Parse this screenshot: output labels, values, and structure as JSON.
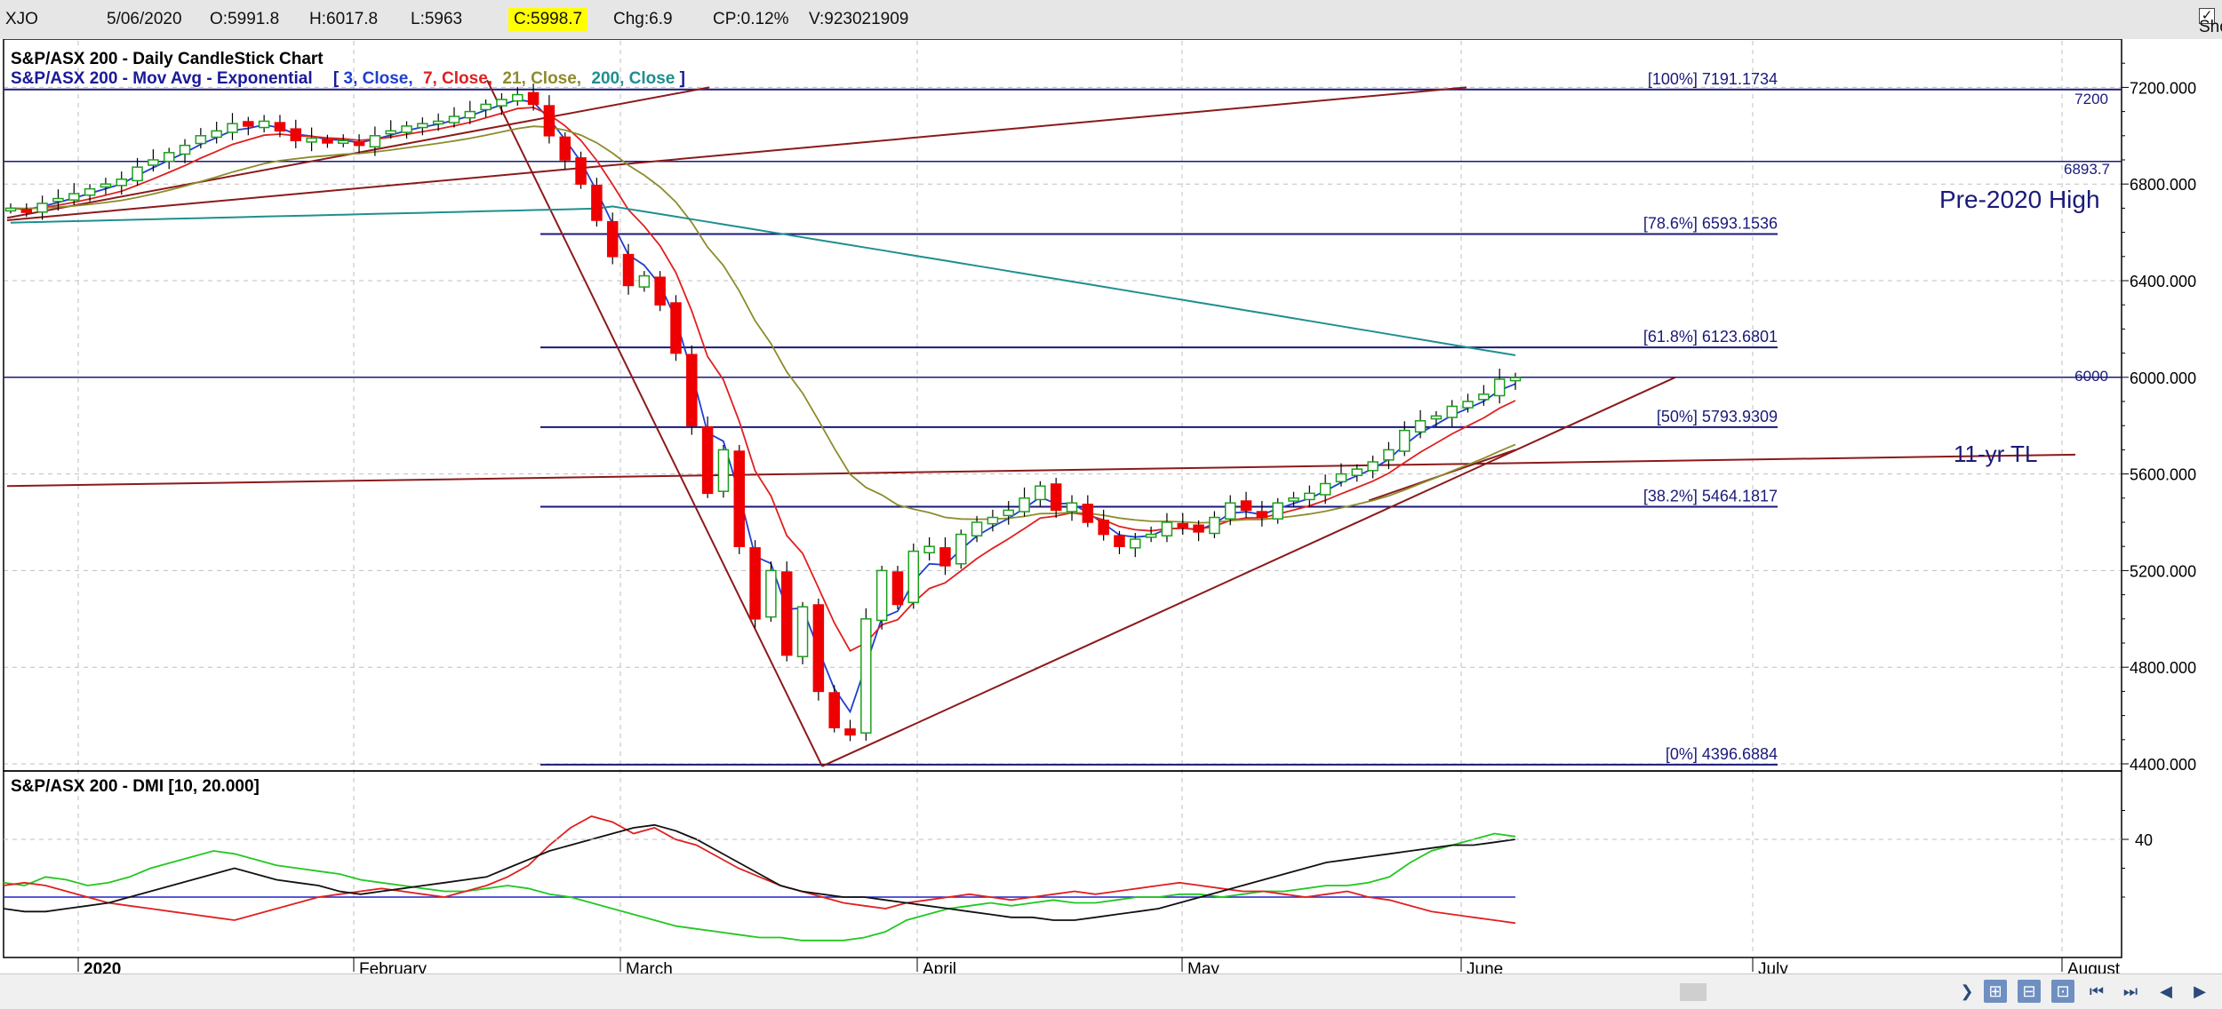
{
  "quote": {
    "symbol": "XJO",
    "date": "5/06/2020",
    "open": "O:5991.8",
    "high": "H:6017.8",
    "low": "L:5963",
    "close": "C:5998.7",
    "change": "Chg:6.9",
    "change_pct": "CP:0.12%",
    "volume": "V:923021909"
  },
  "show_last": {
    "label": "Show Last",
    "checked": "✓"
  },
  "chart_titles": {
    "main": "S&P/ASX 200 - Daily CandleStick Chart",
    "ma_prefix": "S&P/ASX 200 - Mov Avg - Exponential",
    "ma_bracket_open": "[",
    "ma_3": "3, Close,",
    "ma_7": "7, Close,",
    "ma_21": "21, Close,",
    "ma_200": "200, Close",
    "ma_bracket_close": "]",
    "dmi": "S&P/ASX 200 - DMI [10, 20.000]"
  },
  "colors": {
    "ma3": "#1f3fd0",
    "ma7": "#e02020",
    "ma21": "#8c8c2c",
    "ma200": "#1f8f8f",
    "fib": "#1a1a7a",
    "trend": "#8b1a1a",
    "up_candle": "#1aa01a",
    "down_candle": "#ee0000",
    "dmi_plus": "#21c821",
    "dmi_minus": "#e02020",
    "adx": "#111111",
    "threshold": "#2020c8"
  },
  "annotations": {
    "pre2020": "Pre-2020 High",
    "tl11": "11-yr TL",
    "lvl_7200": "7200",
    "lvl_6893": "6893.7",
    "lvl_6000": "6000"
  },
  "chart_data": {
    "type": "candlestick",
    "y_axis": {
      "range": [
        4400,
        7400
      ],
      "ticks": [
        "7200.000",
        "6800.000",
        "6400.000",
        "6000.000",
        "5600.000",
        "5200.000",
        "4800.000",
        "4400.000"
      ]
    },
    "x_axis": {
      "labels": [
        "2020",
        "February",
        "March",
        "April",
        "May",
        "June",
        "July",
        "August"
      ]
    },
    "fibonacci": [
      {
        "label": "[100%] 7191.1734",
        "value": 7191.1734
      },
      {
        "label": "[78.6%] 6593.1536",
        "value": 6593.1536
      },
      {
        "label": "[61.8%] 6123.6801",
        "value": 6123.6801
      },
      {
        "label": "[50%] 5793.9309",
        "value": 5793.9309
      },
      {
        "label": "[38.2%] 5464.1817",
        "value": 5464.1817
      },
      {
        "label": "[0%] 4396.6884",
        "value": 4396.6884
      }
    ],
    "horizontal_levels": [
      7200,
      6893.7,
      6000
    ],
    "candles_approx": {
      "note": "approximate daily OHLC, early Jan – 5 Jun 2020",
      "closes": [
        6700,
        6690,
        6720,
        6740,
        6760,
        6780,
        6800,
        6820,
        6870,
        6900,
        6930,
        6960,
        7000,
        7020,
        7050,
        7040,
        7060,
        7020,
        6980,
        6990,
        6970,
        6980,
        6960,
        7000,
        7020,
        7040,
        7050,
        7060,
        7080,
        7100,
        7130,
        7150,
        7170,
        7130,
        7000,
        6900,
        6800,
        6650,
        6500,
        6380,
        6420,
        6300,
        6100,
        5800,
        5520,
        5700,
        5300,
        5000,
        5200,
        4850,
        5050,
        4700,
        4550,
        4520,
        5000,
        5200,
        5060,
        5280,
        5300,
        5220,
        5350,
        5400,
        5420,
        5450,
        5500,
        5550,
        5450,
        5480,
        5400,
        5350,
        5300,
        5330,
        5350,
        5400,
        5380,
        5360,
        5420,
        5480,
        5450,
        5420,
        5480,
        5500,
        5520,
        5560,
        5600,
        5620,
        5650,
        5700,
        5780,
        5820,
        5840,
        5880,
        5900,
        5930,
        5992,
        5999
      ]
    },
    "dmi": {
      "y_ticks": [
        "40"
      ],
      "threshold": 20,
      "plus_di": [
        25,
        24,
        27,
        26,
        24,
        25,
        27,
        30,
        32,
        34,
        36,
        35,
        33,
        31,
        30,
        29,
        28,
        26,
        25,
        24,
        23,
        22,
        22,
        23,
        24,
        23,
        21,
        20,
        18,
        16,
        14,
        12,
        10,
        9,
        8,
        7,
        6,
        6,
        5,
        5,
        5,
        6,
        8,
        12,
        14,
        16,
        17,
        18,
        17,
        18,
        19,
        18,
        18,
        19,
        20,
        20,
        21,
        21,
        20,
        21,
        22,
        22,
        23,
        24,
        24,
        25,
        27,
        32,
        36,
        38,
        40,
        42,
        41
      ],
      "minus_di": [
        24,
        25,
        24,
        22,
        20,
        18,
        17,
        16,
        15,
        14,
        13,
        12,
        14,
        16,
        18,
        20,
        21,
        22,
        23,
        22,
        21,
        20,
        22,
        24,
        27,
        31,
        38,
        44,
        48,
        46,
        42,
        44,
        40,
        38,
        34,
        30,
        27,
        24,
        22,
        20,
        18,
        17,
        16,
        18,
        19,
        20,
        21,
        20,
        19,
        20,
        21,
        22,
        21,
        22,
        23,
        24,
        25,
        24,
        23,
        22,
        22,
        21,
        20,
        21,
        22,
        20,
        19,
        17,
        15,
        14,
        13,
        12,
        11
      ],
      "adx": [
        16,
        15,
        15,
        16,
        17,
        18,
        20,
        22,
        24,
        26,
        28,
        30,
        28,
        26,
        25,
        24,
        22,
        21,
        22,
        23,
        24,
        25,
        26,
        27,
        30,
        33,
        36,
        38,
        40,
        42,
        44,
        45,
        43,
        40,
        36,
        32,
        28,
        24,
        22,
        21,
        20,
        20,
        19,
        18,
        17,
        16,
        15,
        14,
        13,
        13,
        12,
        12,
        13,
        14,
        15,
        16,
        18,
        20,
        22,
        24,
        26,
        28,
        30,
        32,
        33,
        34,
        35,
        36,
        37,
        38,
        38,
        39,
        40
      ]
    }
  },
  "footer": {
    "scroll_right": "❯",
    "nav_first": "⏮",
    "nav_prev": "◀",
    "nav_next": "▶",
    "nav_last": "⏭"
  }
}
